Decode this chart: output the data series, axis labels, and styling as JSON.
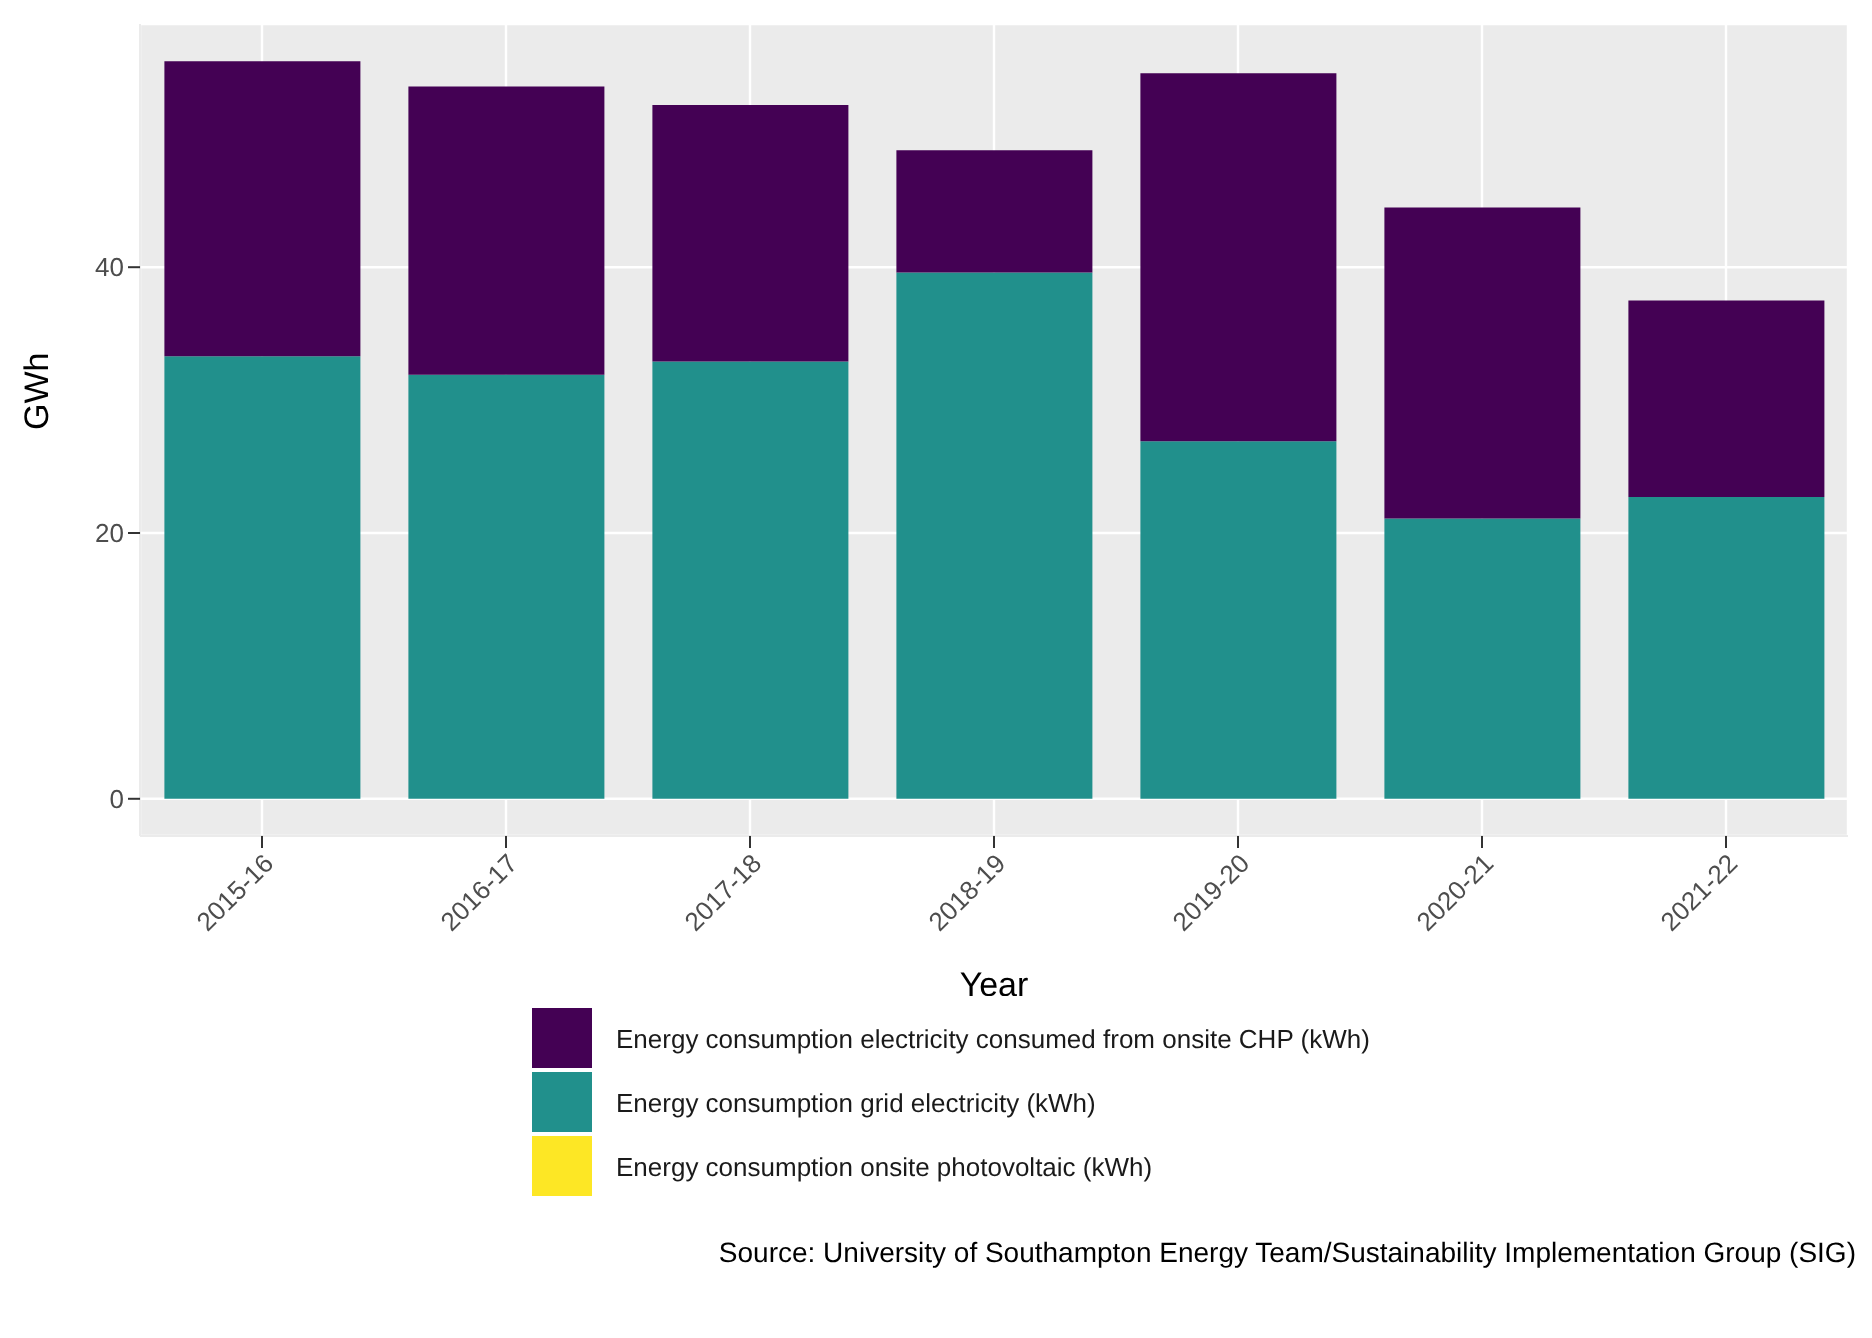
{
  "chart_data": {
    "type": "bar",
    "stacked": true,
    "xlabel": "Year",
    "ylabel": "GWh",
    "categories": [
      "2015-16",
      "2016-17",
      "2017-18",
      "2018-19",
      "2019-20",
      "2020-21",
      "2021-22"
    ],
    "series": [
      {
        "name": "Energy consumption onsite photovoltaic (kWh)",
        "color": "#fde725",
        "values": [
          0,
          0,
          0,
          0,
          0,
          0,
          0
        ]
      },
      {
        "name": "Energy consumption grid electricity (kWh)",
        "color": "#21908c",
        "values": [
          33.3,
          31.9,
          32.9,
          39.6,
          26.9,
          21.1,
          22.7
        ]
      },
      {
        "name": "Energy consumption electricity consumed from onsite CHP (kWh)",
        "color": "#440154",
        "values": [
          22.2,
          21.7,
          19.3,
          9.2,
          27.7,
          23.4,
          14.8
        ]
      }
    ],
    "ylim": [
      -2.8,
      58.3
    ],
    "yticks": [
      0,
      20,
      40
    ],
    "grid": true,
    "legend": "bottom",
    "annotations": [
      "Source: University of Southampton Energy Team/Sustainability Implementation Group (SIG)"
    ]
  }
}
